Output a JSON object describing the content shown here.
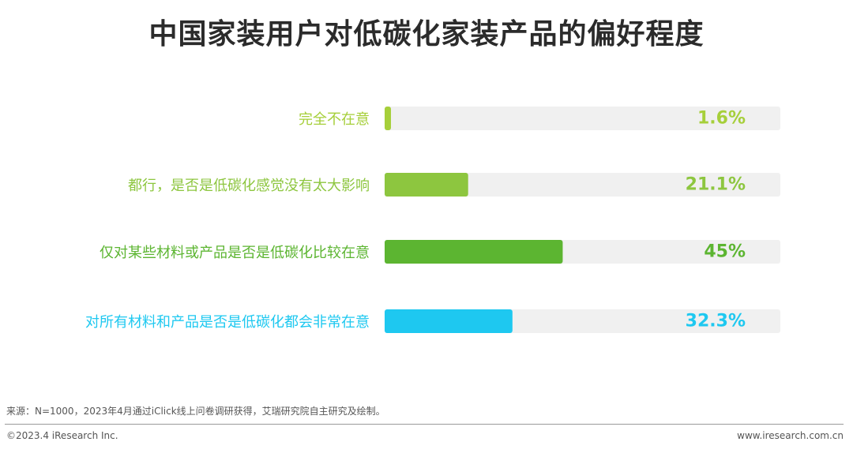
{
  "title": "中国家装用户对低碳化家装产品的偏好程度",
  "chart_data": {
    "type": "bar",
    "orientation": "horizontal",
    "categories": [
      "完全不在意",
      "都行，是否是低碳化感觉没有太大影响",
      "仅对某些材料或产品是否是低碳化比较在意",
      "对所有材料和产品是否是低碳化都会非常在意"
    ],
    "values": [
      1.6,
      21.1,
      45,
      32.3
    ],
    "value_labels": [
      "1.6%",
      "21.1%",
      "45%",
      "32.3%"
    ],
    "colors": [
      "#a6cf3a",
      "#8dc63f",
      "#5cb531",
      "#1ec8f0"
    ],
    "track_color": "#f0f0f0",
    "xlim": [
      0,
      100
    ]
  },
  "footer": {
    "source": "来源：N=1000，2023年4月通过iClick线上问卷调研获得，艾瑞研究院自主研究及绘制。",
    "copyright": "©2023.4 iResearch Inc.",
    "website": "www.iresearch.com.cn"
  }
}
